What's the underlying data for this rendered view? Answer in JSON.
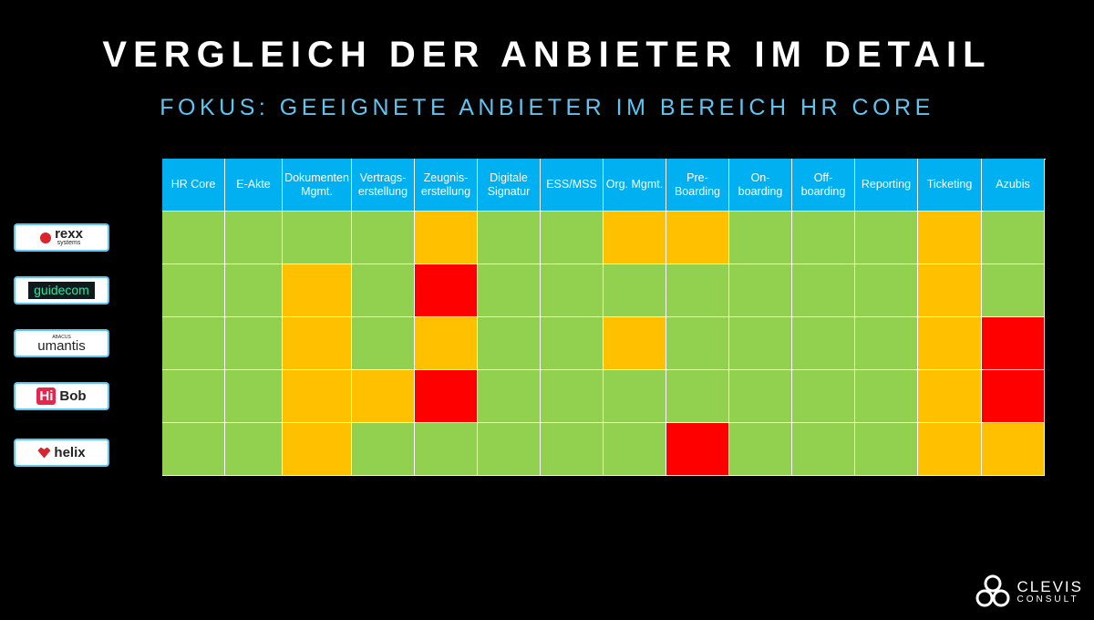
{
  "header": {
    "title": "VERGLEICH DER ANBIETER IM DETAIL",
    "subtitle": "FOKUS: GEEIGNETE ANBIETER IM BEREICH HR CORE"
  },
  "table": {
    "columns": [
      "HR Core",
      "E-Akte",
      "Dokumenten\nMgmt.",
      "Vertrags-\nerstellung",
      "Zeugnis-\nerstellung",
      "Digitale\nSignatur",
      "ESS/MSS",
      "Org. Mgmt.",
      "Pre-\nBoarding",
      "On-\nboarding",
      "Off-\nboarding",
      "Reporting",
      "Ticketing",
      "Azubis"
    ],
    "rows": [
      {
        "logo": {
          "name": "rexx",
          "sub": "systems"
        },
        "cells": [
          "#92d050",
          "#92d050",
          "#92d050",
          "#92d050",
          "#ffc000",
          "#92d050",
          "#92d050",
          "#ffc000",
          "#ffc000",
          "#92d050",
          "#92d050",
          "#92d050",
          "#ffc000",
          "#92d050"
        ]
      },
      {
        "logo": {
          "name": "guidecom"
        },
        "cells": [
          "#92d050",
          "#92d050",
          "#ffc000",
          "#92d050",
          "#ff0000",
          "#92d050",
          "#92d050",
          "#92d050",
          "#92d050",
          "#92d050",
          "#92d050",
          "#92d050",
          "#ffc000",
          "#92d050"
        ]
      },
      {
        "logo": {
          "name": "umantis",
          "sup": "ABACUS"
        },
        "cells": [
          "#92d050",
          "#92d050",
          "#ffc000",
          "#92d050",
          "#ffc000",
          "#92d050",
          "#92d050",
          "#ffc000",
          "#92d050",
          "#92d050",
          "#92d050",
          "#92d050",
          "#ffc000",
          "#ff0000"
        ]
      },
      {
        "logo": {
          "badge": "Hi",
          "name": "Bob"
        },
        "cells": [
          "#92d050",
          "#92d050",
          "#ffc000",
          "#ffc000",
          "#ff0000",
          "#92d050",
          "#92d050",
          "#92d050",
          "#92d050",
          "#92d050",
          "#92d050",
          "#92d050",
          "#ffc000",
          "#ff0000"
        ]
      },
      {
        "logo": {
          "name": "helix"
        },
        "cells": [
          "#92d050",
          "#92d050",
          "#ffc000",
          "#92d050",
          "#92d050",
          "#92d050",
          "#92d050",
          "#92d050",
          "#ff0000",
          "#92d050",
          "#92d050",
          "#92d050",
          "#ffc000",
          "#ffc000"
        ]
      }
    ]
  },
  "footer": {
    "brand": "CLEVIS",
    "tagline": "CONSULT"
  }
}
